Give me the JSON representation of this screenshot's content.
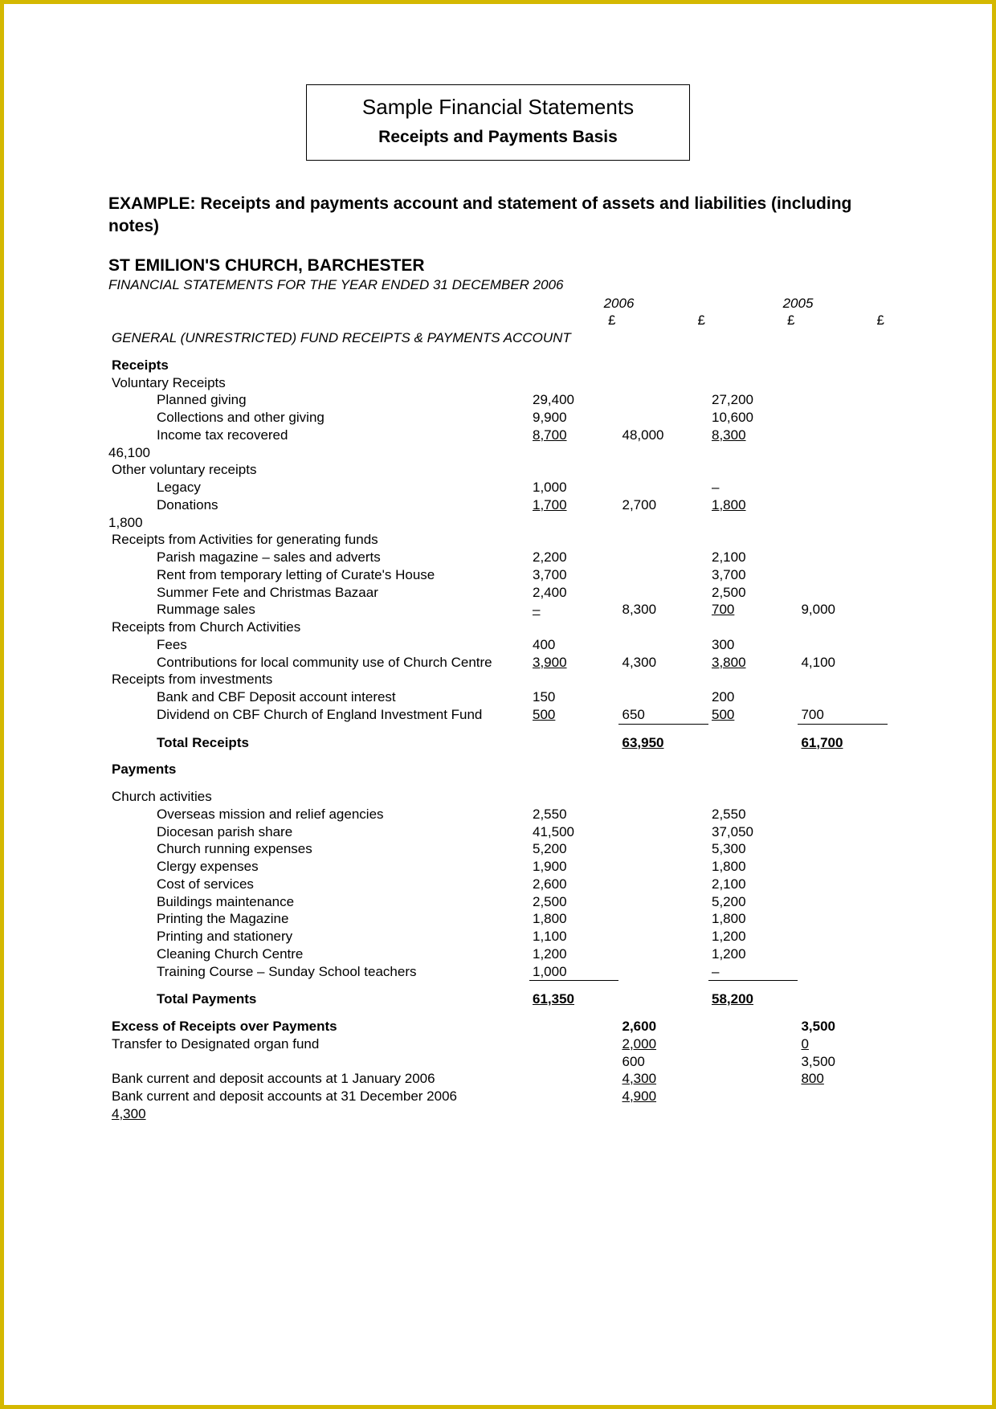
{
  "text_color": "#000000",
  "bg_color": "#ffffff",
  "border_color": "#d4b800",
  "currency": "£",
  "dash": "–",
  "title_box": {
    "line1": "Sample Financial Statements",
    "line2": "Receipts and Payments Basis"
  },
  "example_heading": "EXAMPLE: Receipts and payments account and statement of assets and liabilities (including notes)",
  "church_name": "ST EMILION'S CHURCH, BARCHESTER",
  "period_line": "FINANCIAL STATEMENTS FOR THE YEAR ENDED 31 DECEMBER 2006",
  "year1": "2006",
  "year2": "2005",
  "section_header": "GENERAL (UNRESTRICTED) FUND RECEIPTS & PAYMENTS ACCOUNT",
  "receipts": {
    "heading": "Receipts",
    "voluntary_heading": "Voluntary Receipts",
    "planned_giving": {
      "label": "Planned giving",
      "c1": "29,400",
      "c3": "27,200"
    },
    "collections": {
      "label": "Collections and other giving",
      "c1": "9,900",
      "c3": "10,600"
    },
    "income_tax": {
      "label": "Income tax recovered",
      "c1": "8,700",
      "c2": "48,000",
      "c3": "8,300"
    },
    "income_tax_wrap": "46,100",
    "other_vol_heading": "Other voluntary receipts",
    "legacy": {
      "label": "Legacy",
      "c1": "1,000",
      "c3": "–"
    },
    "donations": {
      "label": "Donations",
      "c1": "1,700",
      "c2": "2,700",
      "c3": "1,800"
    },
    "donations_wrap": "1,800",
    "activities_heading": "Receipts from Activities for generating funds",
    "parish_mag": {
      "label": "Parish magazine – sales and adverts",
      "c1": "2,200",
      "c3": "2,100"
    },
    "rent": {
      "label": "Rent from temporary letting of Curate's House",
      "c1": "3,700",
      "c3": "3,700"
    },
    "summer_fete": {
      "label": "Summer Fete and Christmas Bazaar",
      "c1": "2,400",
      "c3": "2,500"
    },
    "rummage": {
      "label": "Rummage sales",
      "c1": "–",
      "c2": "8,300",
      "c3": "700",
      "c4": "9,000"
    },
    "church_act_heading": "Receipts from Church Activities",
    "fees": {
      "label": "Fees",
      "c1": "400",
      "c3": "300"
    },
    "contrib": {
      "label": "Contributions for local community use of Church Centre",
      "c1": "3,900",
      "c2": "4,300",
      "c3": "3,800",
      "c4": "4,100"
    },
    "invest_heading": "Receipts from investments",
    "bank_int": {
      "label": "Bank and CBF Deposit account interest",
      "c1": "150",
      "c3": "200"
    },
    "dividend": {
      "label": "Dividend on CBF Church of England Investment Fund",
      "c1": "500",
      "c2": "650",
      "c3": "500",
      "c4": "700"
    },
    "total": {
      "label": "Total Receipts",
      "c2": "63,950",
      "c4": "61,700"
    }
  },
  "payments": {
    "heading": "Payments",
    "church_heading": "Church activities",
    "rows": [
      {
        "label": "Overseas mission and relief agencies",
        "c1": "2,550",
        "c3": "2,550"
      },
      {
        "label": "Diocesan parish share",
        "c1": "41,500",
        "c3": "37,050"
      },
      {
        "label": "Church running expenses",
        "c1": "5,200",
        "c3": "5,300"
      },
      {
        "label": "Clergy expenses",
        "c1": "1,900",
        "c3": "1,800"
      },
      {
        "label": "Cost of services",
        "c1": "2,600",
        "c3": "2,100"
      },
      {
        "label": "Buildings maintenance",
        "c1": "2,500",
        "c3": "5,200"
      },
      {
        "label": "Printing the Magazine",
        "c1": "1,800",
        "c3": "1,800"
      },
      {
        "label": "Printing and stationery",
        "c1": "1,100",
        "c3": "1,200"
      },
      {
        "label": "Cleaning Church Centre",
        "c1": "1,200",
        "c3": "1,200"
      },
      {
        "label": "Training Course – Sunday School teachers",
        "c1": "1,000",
        "c3": "–"
      }
    ],
    "total": {
      "label": "Total Payments",
      "c1": "61,350",
      "c3": "58,200"
    }
  },
  "footer": {
    "excess": {
      "label": "Excess of Receipts over Payments",
      "c2": "2,600",
      "c4": "3,500"
    },
    "transfer": {
      "label": "Transfer to Designated organ fund",
      "c2": "2,000",
      "c4": "0"
    },
    "after_transfer": {
      "c2": "600",
      "c4": "3,500"
    },
    "bank_open": {
      "label": "Bank current and deposit accounts at 1 January 2006",
      "c2": "4,300",
      "c4": "800"
    },
    "bank_close": {
      "label": "Bank current and deposit accounts at 31 December 2006",
      "c2": "4,900"
    },
    "bank_close_wrap": "4,300"
  }
}
